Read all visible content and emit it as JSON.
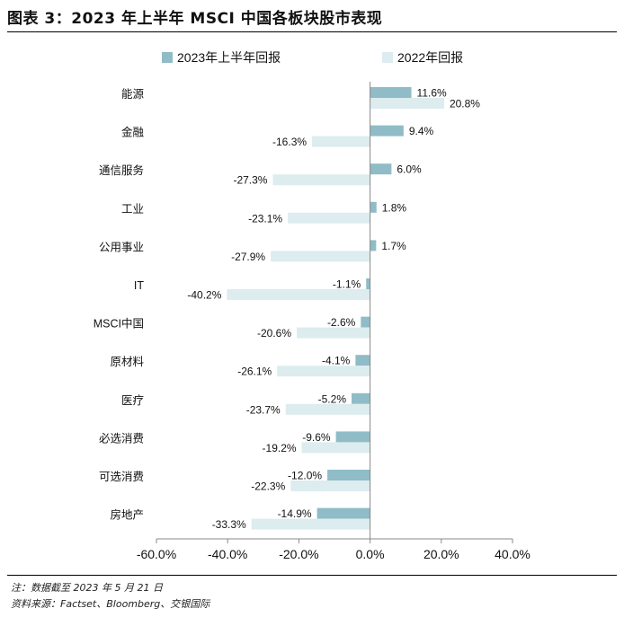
{
  "title": "图表 3：2023 年上半年 MSCI 中国各板块股市表现",
  "footnote": "注：数据截至 2023 年 5 月 21 日",
  "source": "资料来源：Factset、Bloomberg、交银国际",
  "colors": {
    "series_2023": "#8fbcc6",
    "series_2022": "#dcecef"
  },
  "chart_data": {
    "type": "bar",
    "orientation": "horizontal",
    "categories": [
      "能源",
      "金融",
      "通信服务",
      "工业",
      "公用事业",
      "IT",
      "MSCI中国",
      "原材料",
      "医疗",
      "必选消费",
      "可选消费",
      "房地产"
    ],
    "series": [
      {
        "name": "2023年上半年回报",
        "values": [
          11.6,
          9.4,
          6.0,
          1.8,
          1.7,
          -1.1,
          -2.6,
          -4.1,
          -5.2,
          -9.6,
          -12.0,
          -14.9
        ]
      },
      {
        "name": "2022年回报",
        "values": [
          20.8,
          -16.3,
          -27.3,
          -23.1,
          -27.9,
          -40.2,
          -20.6,
          -26.1,
          -23.7,
          -19.2,
          -22.3,
          -33.3
        ]
      }
    ],
    "xlim": [
      -60,
      40
    ],
    "xticks": [
      "-60.0%",
      "-40.0%",
      "-20.0%",
      "0.0%",
      "20.0%",
      "40.0%"
    ],
    "xtick_values": [
      -60,
      -40,
      -20,
      0,
      20,
      40
    ],
    "legend_position": "top"
  }
}
